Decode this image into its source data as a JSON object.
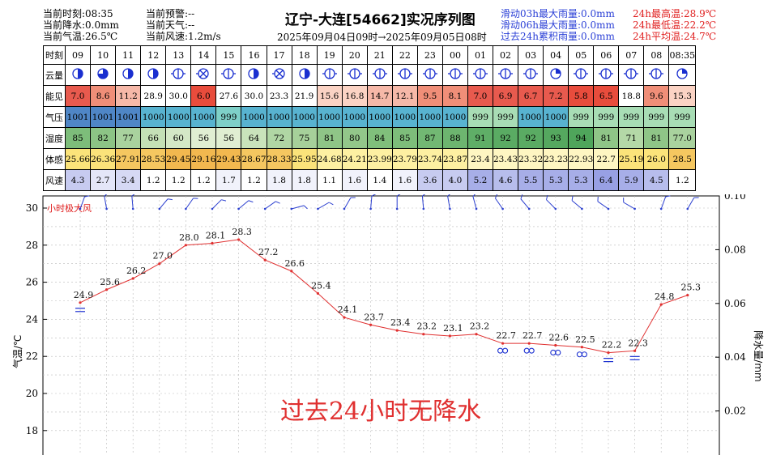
{
  "header": {
    "left": [
      "当前时刻:08:35",
      "当前降水:0.0mm",
      "当前气温:26.5℃"
    ],
    "mid": [
      "当前预警:--",
      "当前天气:--",
      "当前风速:1.2m/s"
    ],
    "title": "辽宁-大连[54662]实况序列图",
    "period": "2025年09月04日09时→2025年09月05日08时",
    "rain": [
      "滑动03h最大雨量:0.0mm",
      "滑动06h最大雨量:0.0mm",
      "过去24h累积雨量:0.0mm"
    ],
    "temp": [
      "24h最高温:28.9℃",
      "24h最低温:22.2℃",
      "24h平均温:24.7℃"
    ]
  },
  "table": {
    "row_labels": [
      "时刻",
      "云量",
      "能见",
      "气压",
      "湿度",
      "体感",
      "风速"
    ],
    "hours": [
      "09",
      "10",
      "11",
      "12",
      "13",
      "14",
      "15",
      "16",
      "17",
      "18",
      "19",
      "20",
      "21",
      "22",
      "23",
      "00",
      "01",
      "02",
      "03",
      "04",
      "05",
      "06",
      "07",
      "08",
      "08:35"
    ],
    "cloud_icons": [
      "half-sun-circle-icon",
      "threequarter-circle-icon",
      "half-circle-icon",
      "half-circle-icon",
      "barred-circle-icon",
      "obscured-circle-icon",
      "barred-circle-icon",
      "half-circle-icon",
      "obscured-circle-icon",
      "half-circle-icon",
      "barred-circle-icon",
      "barred-circle-icon",
      "barred-circle-icon",
      "barred-circle-icon",
      "barred-circle-icon",
      "barred-circle-icon",
      "barred-circle-icon",
      "barred-circle-icon",
      "barred-circle-icon",
      "quarter-circle-icon",
      "barred-circle-icon",
      "barred-circle-icon",
      "barred-circle-icon",
      "barred-circle-icon",
      "quarter-circle-icon"
    ],
    "visibility": [
      "7.0",
      "8.6",
      "11.2",
      "28.9",
      "30.0",
      "6.0",
      "27.6",
      "30.0",
      "23.3",
      "21.9",
      "15.6",
      "16.8",
      "14.7",
      "12.1",
      "9.5",
      "8.1",
      "7.0",
      "6.9",
      "6.7",
      "7.2",
      "5.8",
      "6.5",
      "18.8",
      "9.6",
      "15.3"
    ],
    "visibility_colors": [
      "#e85a4e",
      "#f08e78",
      "#f6b8a8",
      "#ffffff",
      "#ffffff",
      "#e84c3c",
      "#ffffff",
      "#ffffff",
      "#ffffff",
      "#ffffff",
      "#fbd3c4",
      "#fbd3c4",
      "#f6b8a8",
      "#f6b8a8",
      "#f08e78",
      "#f08e78",
      "#e85a4e",
      "#e85a4e",
      "#e85a4e",
      "#e85a4e",
      "#e84c3c",
      "#e84c3c",
      "#ffffff",
      "#f08e78",
      "#fbd3c4"
    ],
    "pressure": [
      "1001",
      "1001",
      "1001",
      "1000",
      "1000",
      "1000",
      "999",
      "1000",
      "1000",
      "1000",
      "1000",
      "1000",
      "1000",
      "1000",
      "1000",
      "1000",
      "999",
      "999",
      "1000",
      "1000",
      "999",
      "999",
      "999",
      "999",
      "999"
    ],
    "pressure_colors": [
      "#4f86c6",
      "#4f86c6",
      "#4f86c6",
      "#58b3d0",
      "#58b3d0",
      "#58b3d0",
      "#7ed0c8",
      "#58b3d0",
      "#58b3d0",
      "#58b3d0",
      "#58b3d0",
      "#58b3d0",
      "#58b3d0",
      "#58b3d0",
      "#58b3d0",
      "#58b3d0",
      "#a8ddb5",
      "#a8ddb5",
      "#58b3d0",
      "#58b3d0",
      "#a8ddb5",
      "#a8ddb5",
      "#a8ddb5",
      "#a8ddb5",
      "#a8ddb5"
    ],
    "humidity": [
      "85",
      "82",
      "77",
      "66",
      "60",
      "56",
      "56",
      "64",
      "72",
      "75",
      "81",
      "80",
      "84",
      "85",
      "87",
      "88",
      "91",
      "92",
      "92",
      "93",
      "94",
      "81",
      "71",
      "81",
      "77.0"
    ],
    "humidity_colors": [
      "#7dbd7a",
      "#8cc485",
      "#a9d29e",
      "#c4e0b6",
      "#d4e8c6",
      "#e0eed2",
      "#e0eed2",
      "#c9e3bb",
      "#b0d6a4",
      "#a6d09a",
      "#8fc587",
      "#93c78a",
      "#80bf7b",
      "#7dbd7a",
      "#72b873",
      "#6db56f",
      "#5fae67",
      "#5aab63",
      "#5aab63",
      "#55a85f",
      "#4fa55b",
      "#8fc587",
      "#b4d8a7",
      "#8fc587",
      "#a9d29e"
    ],
    "feels": [
      "25.66",
      "26.36",
      "27.91",
      "28.53",
      "29.45",
      "29.16",
      "29.43",
      "28.67",
      "28.33",
      "25.95",
      "24.68",
      "24.21",
      "23.99",
      "23.79",
      "23.74",
      "23.87",
      "23.4",
      "23.43",
      "23.32",
      "23.23",
      "22.93",
      "22.7",
      "25.19",
      "26.0",
      "28.5"
    ],
    "feels_colors": [
      "#fbe37a",
      "#fbe37a",
      "#f5c760",
      "#f5c760",
      "#f2b84f",
      "#f2b84f",
      "#f2b84f",
      "#f5c760",
      "#f5c760",
      "#fbe37a",
      "#fdf0a2",
      "#fdf0a2",
      "#fdf0a2",
      "#fdf0a2",
      "#fdf0a2",
      "#fdf0a2",
      "#fef6c2",
      "#fef6c2",
      "#fef6c2",
      "#fef6c2",
      "#fef6c2",
      "#fef6c2",
      "#fbe37a",
      "#fbe37a",
      "#f5c760"
    ],
    "wind": [
      "4.3",
      "2.7",
      "3.4",
      "1.2",
      "1.2",
      "1.2",
      "1.7",
      "1.2",
      "1.8",
      "1.8",
      "1.1",
      "1.6",
      "1.4",
      "1.6",
      "3.6",
      "4.0",
      "5.2",
      "4.6",
      "5.5",
      "5.3",
      "5.3",
      "6.4",
      "5.9",
      "4.5",
      "1.2"
    ],
    "wind_colors": [
      "#c7cbf0",
      "#e4e6f8",
      "#d6d9f4",
      "#ffffff",
      "#ffffff",
      "#ffffff",
      "#f1f2fb",
      "#ffffff",
      "#f1f2fb",
      "#f1f2fb",
      "#ffffff",
      "#f1f2fb",
      "#ffffff",
      "#f1f2fb",
      "#c7cbf0",
      "#c7cbf0",
      "#a7aee8",
      "#b7bdec",
      "#a7aee8",
      "#a7aee8",
      "#a7aee8",
      "#98a0e4",
      "#a7aee8",
      "#b7bdec",
      "#ffffff"
    ]
  },
  "chart_data": {
    "type": "line",
    "x": [
      "09",
      "10",
      "11",
      "12",
      "13",
      "14",
      "15",
      "16",
      "17",
      "18",
      "19",
      "20",
      "21",
      "22",
      "23",
      "00",
      "01",
      "02",
      "03",
      "04",
      "05",
      "06",
      "07",
      "08"
    ],
    "series": [
      {
        "name": "",
        "values": [
          24.9,
          25.6,
          26.2,
          27.0,
          28.0,
          28.1,
          28.3,
          27.2,
          26.6,
          25.4,
          24.1,
          23.7,
          23.4,
          23.2,
          23.1,
          23.2,
          22.7,
          22.7,
          22.6,
          22.5,
          22.2,
          22.3,
          24.8,
          25.3
        ]
      }
    ],
    "ylabel_left": "气温/℃",
    "ylabel_right": "降水量/mm",
    "ylim_left": [
      17,
      31
    ],
    "yticks_left": [
      "18",
      "20",
      "22",
      "24",
      "26",
      "28",
      "30"
    ],
    "ylim_right": [
      0,
      0.1
    ],
    "yticks_right": [
      "0.02",
      "0.04",
      "0.06",
      "0.08",
      "0.10"
    ],
    "annotation": "过去24小时无降水",
    "legend_text": "小时极大风",
    "line_color": "#e03030",
    "grid": true
  }
}
